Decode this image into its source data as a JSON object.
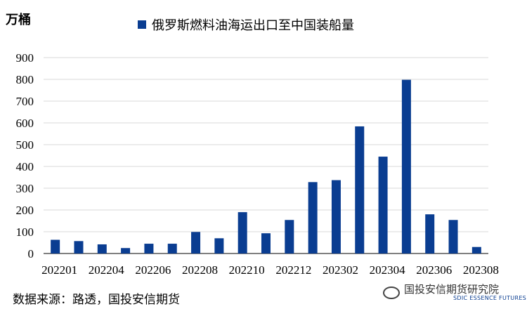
{
  "header": {
    "unit_label": "万桶",
    "legend_label": "俄罗斯燃料油海运出口至中国装船量"
  },
  "footer": {
    "source": "数据来源：路透，国投安信期货",
    "watermark": "国投安信期货研究院",
    "watermark_sub": "SDIC ESSENCE FUTURES"
  },
  "colors": {
    "bar": "#0A3D91",
    "grid": "#d9d9d9",
    "axis": "#000000"
  },
  "chart_data": {
    "type": "bar",
    "title": "",
    "ylabel": "万桶",
    "xlabel": "",
    "ylim": [
      0,
      900
    ],
    "yticks": [
      0,
      100,
      200,
      300,
      400,
      500,
      600,
      700,
      800,
      900
    ],
    "xtick_labels": [
      "202201",
      "202204",
      "202206",
      "202208",
      "202210",
      "202212",
      "202302",
      "202304",
      "202306",
      "202308"
    ],
    "grid": true,
    "legend_position": "top",
    "series": [
      {
        "name": "俄罗斯燃料油海运出口至中国装船量",
        "values": [
          63,
          57,
          42,
          25,
          45,
          45,
          99,
          70,
          190,
          93,
          154,
          328,
          337,
          584,
          445,
          798,
          180,
          154,
          30
        ]
      }
    ]
  }
}
